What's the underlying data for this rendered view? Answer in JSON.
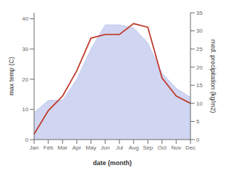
{
  "chart_data": {
    "type": "area",
    "categories": [
      "Jan",
      "Feb",
      "Mar",
      "Apr",
      "May",
      "Jun",
      "Jul",
      "Aug",
      "Sep",
      "Oct",
      "Nov",
      "Dec"
    ],
    "series": [
      {
        "type": "area",
        "color": "#aab4e8",
        "values": [
          9,
          13,
          13,
          20,
          30,
          38,
          38,
          37,
          32,
          22,
          17,
          14
        ]
      },
      {
        "type": "line",
        "axis": "y2",
        "color": "#c0392b",
        "values": [
          1.5,
          8,
          12,
          19,
          28,
          29,
          29,
          32,
          31,
          17,
          12,
          10
        ]
      }
    ],
    "xlabel": "date (month)",
    "ylabel": "max temp (C)",
    "y2label": "med. precipitation (kg/m2)",
    "ylim": [
      0,
      42
    ],
    "yticks": [
      0,
      10,
      20,
      30,
      40
    ],
    "y2lim": [
      0,
      35
    ],
    "y2ticks": [
      0,
      5,
      10,
      15,
      20,
      25,
      30,
      35
    ],
    "grid": false
  }
}
